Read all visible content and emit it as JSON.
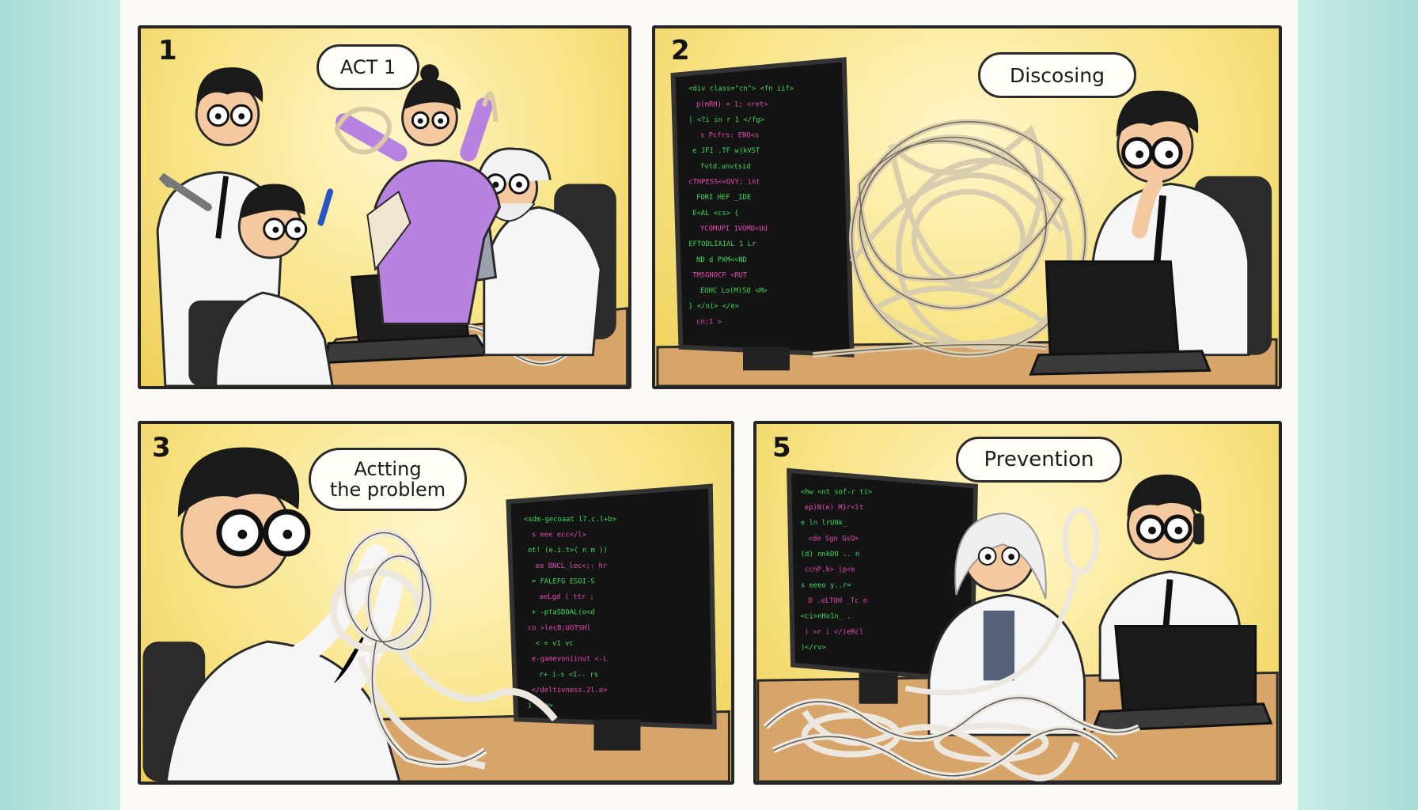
{
  "panels": [
    {
      "number": "1",
      "bubble": "ACT 1"
    },
    {
      "number": "2",
      "bubble": "Discosing"
    },
    {
      "number": "3",
      "bubble": "Actting\nthe problem"
    },
    {
      "number": "5",
      "bubble": "Prevention"
    }
  ],
  "colors": {
    "panel_background": "#f8e488",
    "border": "#262626",
    "screen": "#141414",
    "code_green": "#3ddc5a",
    "code_pink": "#e84ab0",
    "rope": "#e8e2d4",
    "shirt": "#f6f6f6",
    "hair": "#1a1a1a",
    "purple_top": "#b782e0"
  }
}
